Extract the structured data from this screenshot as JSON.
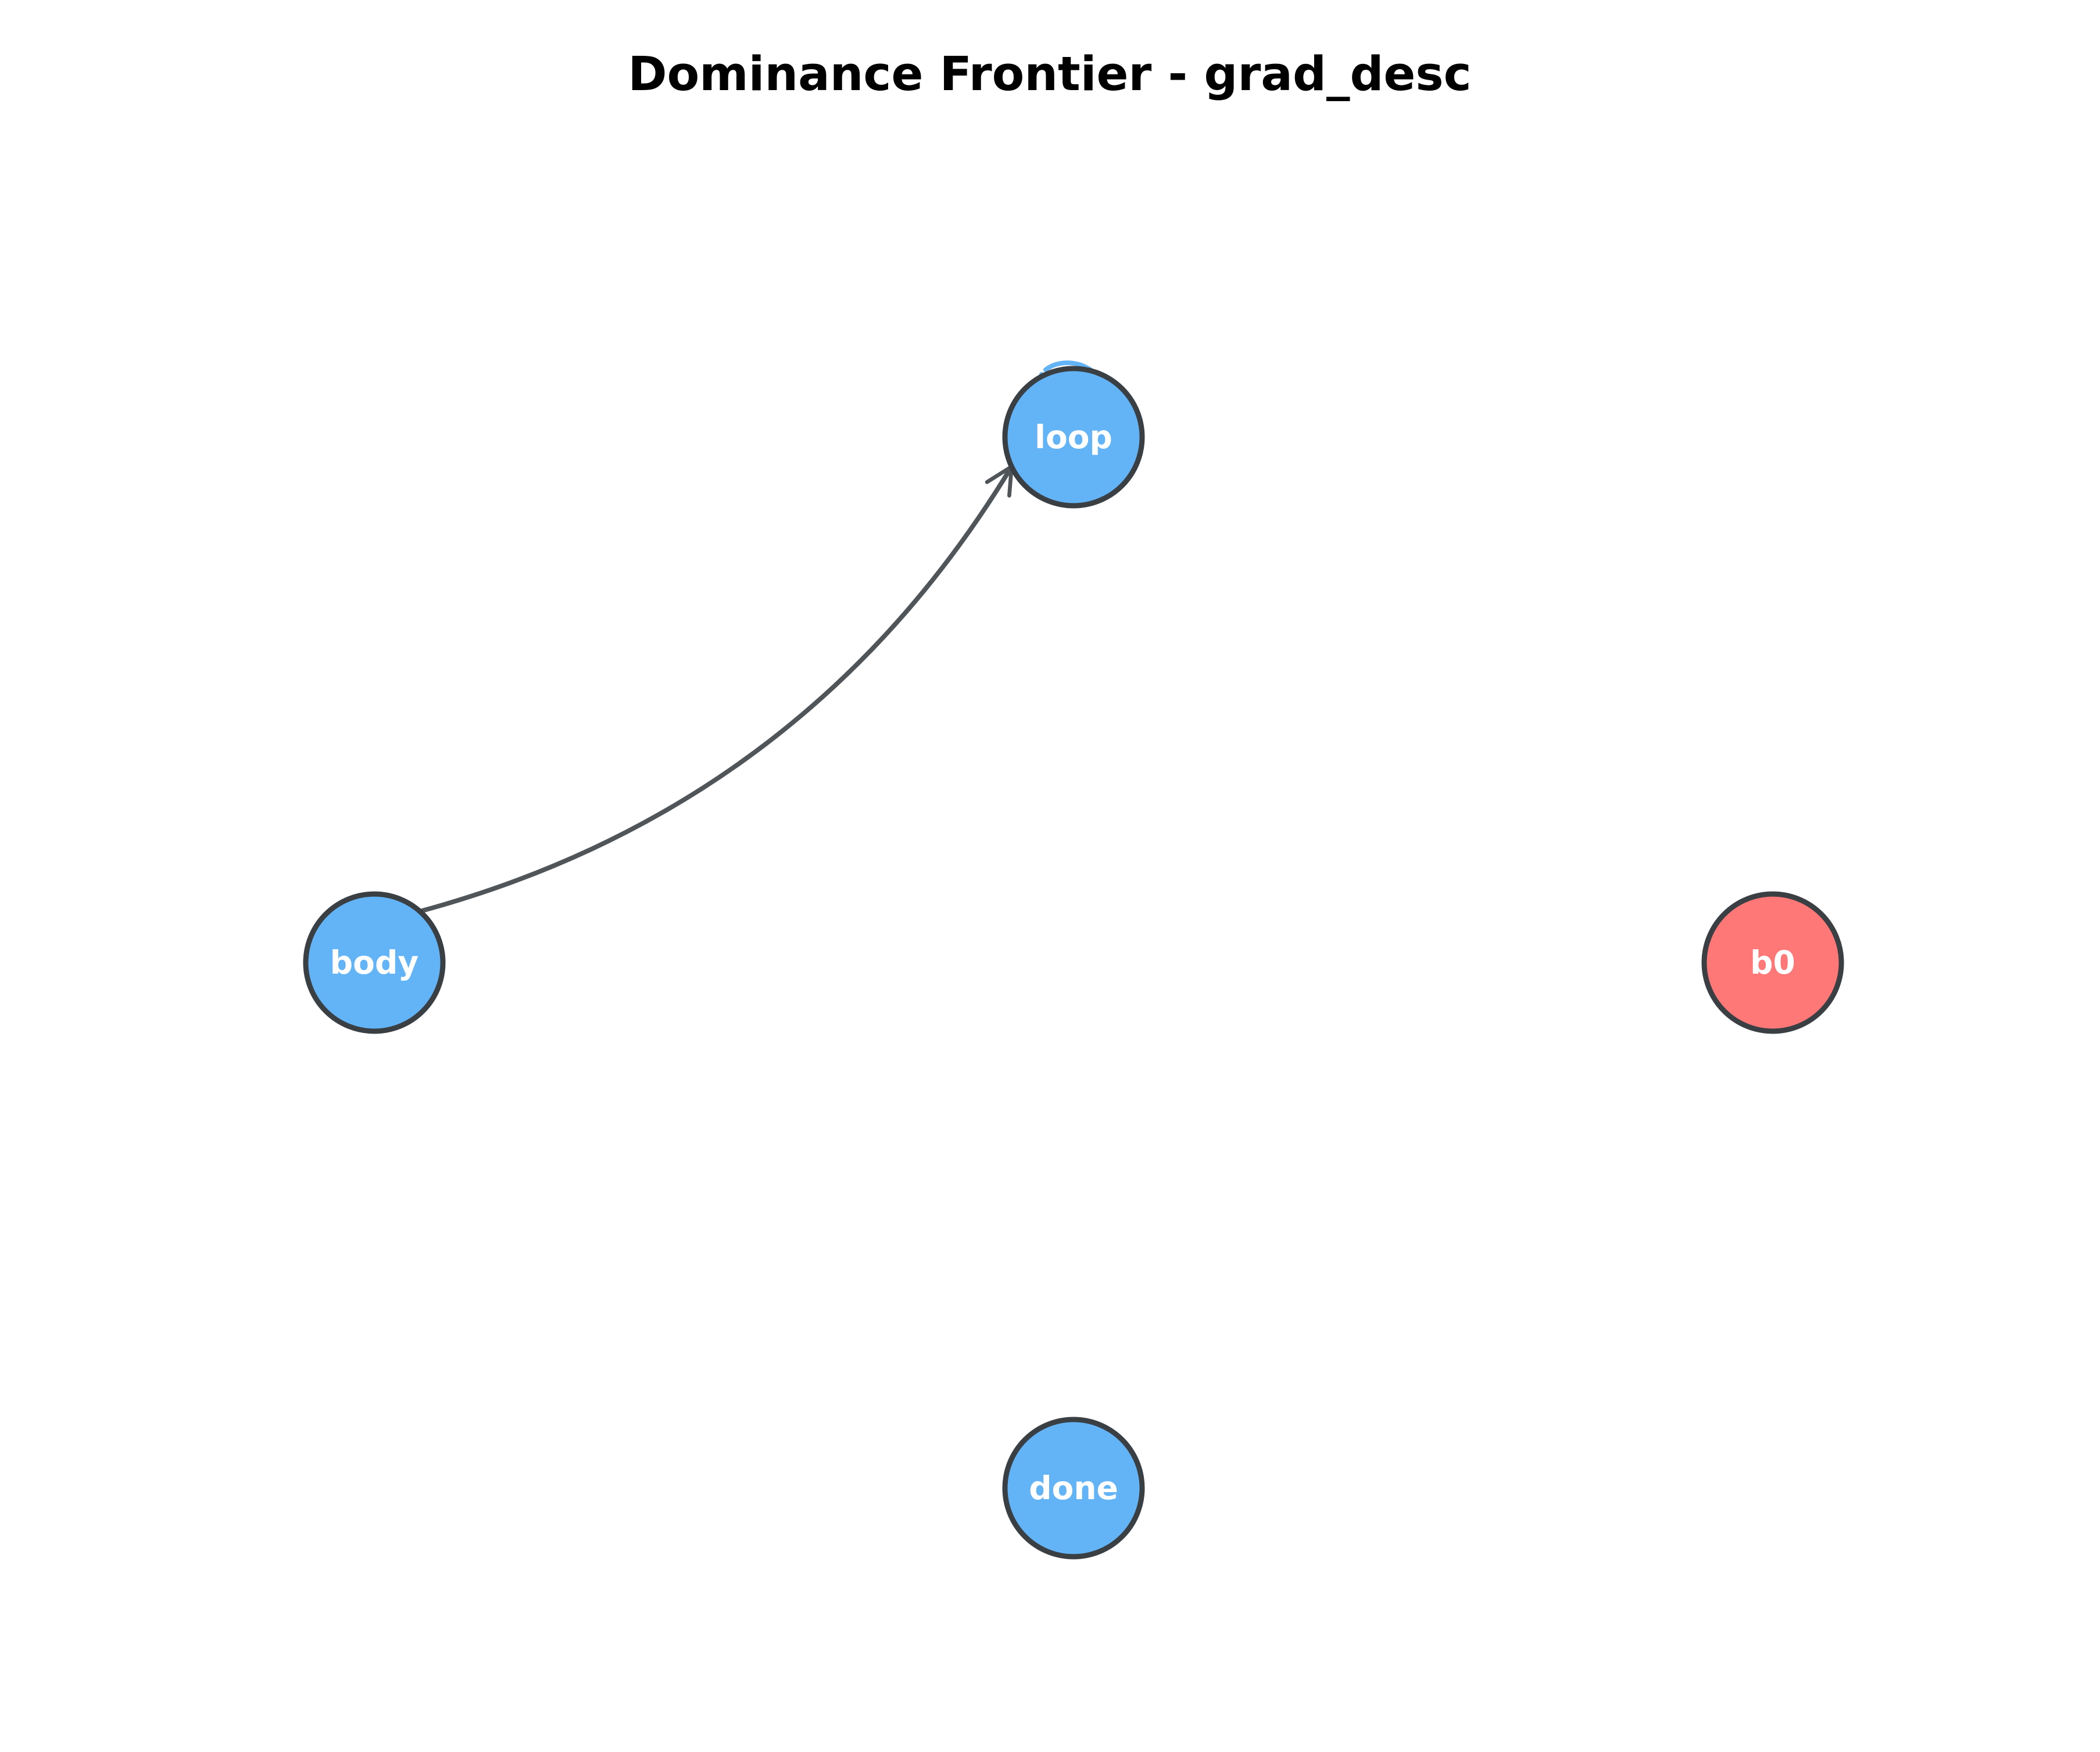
{
  "title": "Dominance Frontier - grad_desc",
  "colors": {
    "default_node": "#63b3f7",
    "entry_node": "#ff7878",
    "node_outline": "#3a3f44",
    "edge": "#4f5558",
    "label": "#ffffff",
    "background": "#ffffff"
  },
  "nodes": [
    {
      "id": "loop",
      "label": "loop",
      "kind": "default"
    },
    {
      "id": "body",
      "label": "body",
      "kind": "default"
    },
    {
      "id": "b0",
      "label": "b0",
      "kind": "entry"
    },
    {
      "id": "done",
      "label": "done",
      "kind": "default"
    }
  ],
  "edges": [
    {
      "from": "body",
      "to": "loop"
    },
    {
      "from": "loop",
      "to": "loop"
    }
  ]
}
